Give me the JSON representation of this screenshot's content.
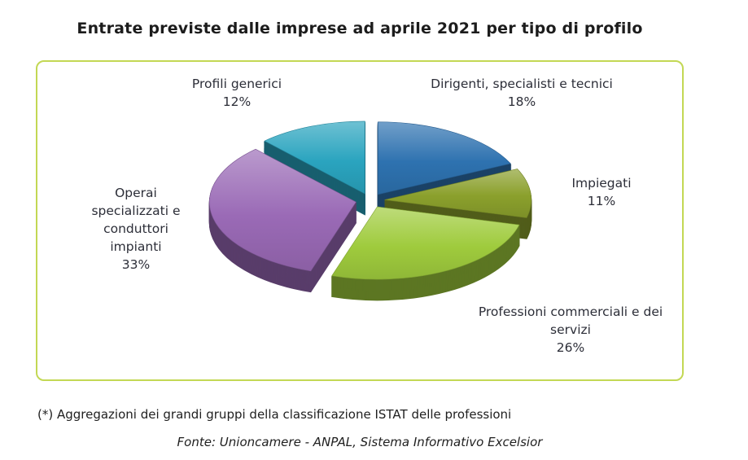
{
  "title": "Entrate previste dalle imprese ad aprile 2021 per tipo di profilo",
  "footnote": "(*) Aggregazioni dei grandi gruppi della classificazione ISTAT delle professioni",
  "source": "Fonte: Unioncamere - ANPAL, Sistema Informativo Excelsior",
  "panel": {
    "border_color": "#c3d854",
    "background": "#ffffff"
  },
  "chart_data": {
    "type": "pie",
    "style": "3d-exploded",
    "title": "Entrate previste dalle imprese ad aprile 2021 per tipo di profilo",
    "unit": "%",
    "total": 100,
    "start_angle_deg": 0,
    "direction": "clockwise",
    "legend_position": "labels-around-pie",
    "slices": [
      {
        "label": "Dirigenti, specialisti e tecnici",
        "value": 18,
        "pct_label": "18%",
        "color": "#2e72b0"
      },
      {
        "label": "Impiegati",
        "value": 11,
        "pct_label": "11%",
        "color": "#8ba02c"
      },
      {
        "label": "Professioni commerciali e dei servizi",
        "value": 26,
        "pct_label": "26%",
        "color": "#9fcb3d"
      },
      {
        "label": "Operai specializzati e conduttori impianti",
        "value": 33,
        "pct_label": "33%",
        "color": "#9a6ab6"
      },
      {
        "label": "Profili generici",
        "value": 12,
        "pct_label": "12%",
        "color": "#2aa4bf"
      }
    ]
  }
}
